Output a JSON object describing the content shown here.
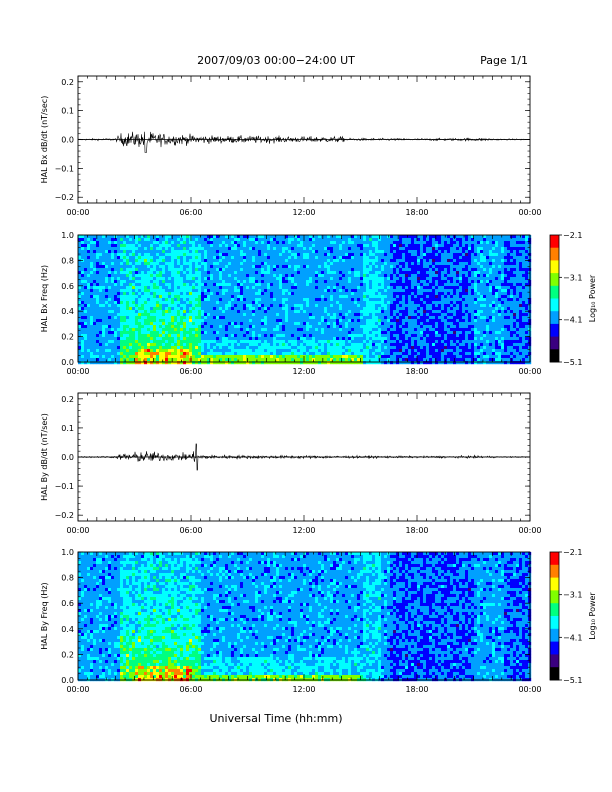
{
  "header": {
    "title": "2007/09/03  00:00−24:00 UT",
    "page": "Page 1/1"
  },
  "xlabel": "Universal Time (hh:mm)",
  "colormap": [
    "#000000",
    "#3a0080",
    "#0000ff",
    "#00a0ff",
    "#00ffff",
    "#00ff80",
    "#80ff00",
    "#ffff00",
    "#ff8000",
    "#ff0000"
  ],
  "chart_data": [
    {
      "type": "line",
      "ylabel": "HAL Bx dB/dt (nT/sec)",
      "ylim": [
        -0.22,
        0.22
      ],
      "yticks": [
        "0.2",
        "0.1",
        "0.0",
        "−0.1",
        "−0.2"
      ],
      "ytick_values": [
        0.2,
        0.1,
        0.0,
        -0.1,
        -0.2
      ],
      "xlim": [
        0,
        24
      ],
      "xticks": [
        "00:00",
        "06:00",
        "12:00",
        "18:00",
        "00:00"
      ],
      "activity_envelope": {
        "hours": [
          0,
          2.0,
          2.3,
          3.0,
          3.5,
          4.5,
          5.5,
          6.5,
          8.0,
          10.0,
          11.0,
          12.0,
          13.0,
          14.0,
          14.3,
          16.0,
          18.0,
          21.5,
          22.5,
          24
        ],
        "amplitude": [
          0.002,
          0.004,
          0.022,
          0.025,
          0.028,
          0.02,
          0.018,
          0.014,
          0.012,
          0.012,
          0.01,
          0.01,
          0.01,
          0.01,
          0.004,
          0.004,
          0.003,
          0.005,
          0.002,
          0.002
        ]
      },
      "peak": {
        "hour": 3.6,
        "value": 0.045
      }
    },
    {
      "type": "heatmap",
      "ylabel": "HAL Bx Freq (Hz)",
      "ylim": [
        0,
        1.0
      ],
      "yticks": [
        "1.0",
        "0.8",
        "0.6",
        "0.4",
        "0.2",
        "0.0"
      ],
      "ytick_values": [
        1.0,
        0.8,
        0.6,
        0.4,
        0.2,
        0.0
      ],
      "xlim": [
        0,
        24
      ],
      "xticks": [
        "00:00",
        "06:00",
        "12:00",
        "18:00",
        "00:00"
      ],
      "colorbar": {
        "label": "Log₁₀ Power",
        "ticks": [
          "−2.1",
          "−3.1",
          "−4.1",
          "−5.1"
        ],
        "tick_values": [
          -2.1,
          -3.1,
          -4.1,
          -5.1
        ],
        "range": [
          -5.1,
          -2.1
        ]
      },
      "activity_window_hours": [
        2.2,
        6.5
      ],
      "peak_power_region": {
        "hours": [
          3.0,
          6.0
        ],
        "freq_hz": [
          0.0,
          0.12
        ],
        "log10_power": -2.1
      }
    },
    {
      "type": "line",
      "ylabel": "HAL By dB/dt (nT/sec)",
      "ylim": [
        -0.22,
        0.22
      ],
      "yticks": [
        "0.2",
        "0.1",
        "0.0",
        "−0.1",
        "−0.2"
      ],
      "ytick_values": [
        0.2,
        0.1,
        0.0,
        -0.1,
        -0.2
      ],
      "xlim": [
        0,
        24
      ],
      "xticks": [
        "00:00",
        "06:00",
        "12:00",
        "18:00",
        "00:00"
      ],
      "activity_envelope": {
        "hours": [
          0,
          2.0,
          2.3,
          3.0,
          3.5,
          4.5,
          5.5,
          6.3,
          6.7,
          8.0,
          10.0,
          12.0,
          14.0,
          16.0,
          18.0,
          21.5,
          22.5,
          24
        ],
        "amplitude": [
          0.002,
          0.003,
          0.012,
          0.016,
          0.02,
          0.014,
          0.012,
          0.018,
          0.008,
          0.006,
          0.005,
          0.005,
          0.004,
          0.004,
          0.003,
          0.004,
          0.002,
          0.002
        ]
      },
      "peak": {
        "hour": 6.3,
        "value": 0.045
      }
    },
    {
      "type": "heatmap",
      "ylabel": "HAL By Freq (Hz)",
      "ylim": [
        0,
        1.0
      ],
      "yticks": [
        "1.0",
        "0.8",
        "0.6",
        "0.4",
        "0.2",
        "0.0"
      ],
      "ytick_values": [
        1.0,
        0.8,
        0.6,
        0.4,
        0.2,
        0.0
      ],
      "xlim": [
        0,
        24
      ],
      "xticks": [
        "00:00",
        "06:00",
        "12:00",
        "18:00",
        "00:00"
      ],
      "colorbar": {
        "label": "Log₁₀ Power",
        "ticks": [
          "−2.1",
          "−3.1",
          "−4.1",
          "−5.1"
        ],
        "tick_values": [
          -2.1,
          -3.1,
          -4.1,
          -5.1
        ],
        "range": [
          -5.1,
          -2.1
        ]
      },
      "activity_window_hours": [
        2.2,
        6.5
      ],
      "peak_power_region": {
        "hours": [
          3.0,
          6.0
        ],
        "freq_hz": [
          0.0,
          0.12
        ],
        "log10_power": -2.1
      }
    }
  ]
}
